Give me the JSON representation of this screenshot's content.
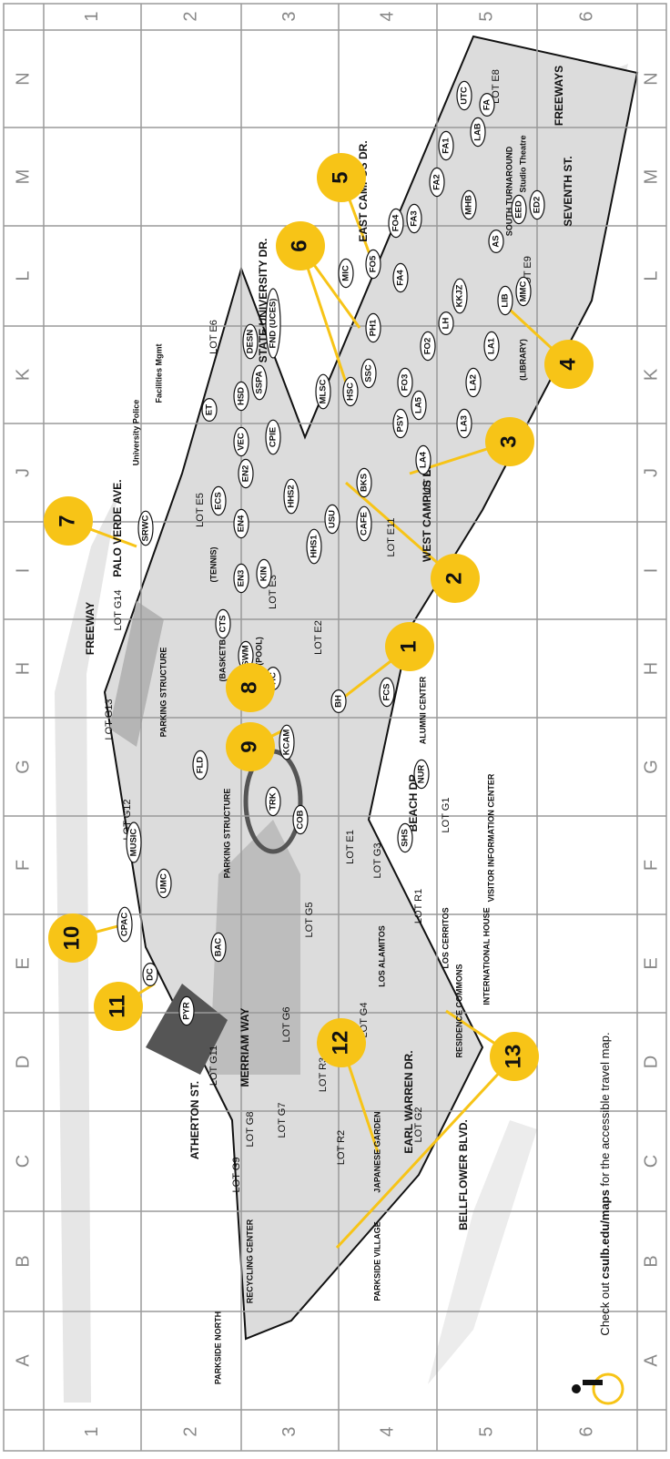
{
  "grid": {
    "columns": [
      "1",
      "2",
      "3",
      "4",
      "5",
      "6"
    ],
    "rows": [
      "N",
      "M",
      "L",
      "K",
      "J",
      "I",
      "H",
      "G",
      "F",
      "E",
      "D",
      "C",
      "B",
      "A"
    ]
  },
  "streets": [
    "PALO VERDE AVE.",
    "FREEWAY",
    "ATHERTON ST.",
    "MERRIAM WAY",
    "EARL WARREN DR.",
    "BELLFLOWER BLVD.",
    "WEST CAMPUS DR.",
    "BEACH DR.",
    "EAST CAMPUS DR.",
    "SEVENTH ST.",
    "FREEWAYS",
    "STATE UNIVERSITY DR."
  ],
  "places": [
    "PARKING STRUCTURE",
    "PARKING STRUCTURE",
    "RECYCLING CENTER",
    "PARKSIDE NORTH",
    "PARKSIDE VILLAGE",
    "JAPANESE GARDEN",
    "RESIDENCE COMMONS",
    "LOS ALAMITOS",
    "LOS CERRITOS",
    "INTERNATIONAL HOUSE",
    "VISITOR INFORMATION CENTER",
    "ALUMNI CENTER",
    "University Police",
    "Facilities Mgmt",
    "SOUTH TURNAROUND",
    "Studio Theatre",
    "(LIBRARY)",
    "(BASKETBALL)",
    "(TENNIS)",
    "(POOL)"
  ],
  "lots": [
    "LOT G13",
    "LOT G14",
    "LOT G12",
    "LOT G11",
    "LOT G9",
    "LOT G8",
    "LOT G7",
    "LOT G6",
    "LOT G5",
    "LOT G4",
    "LOT G3",
    "LOT G2",
    "LOT G1",
    "LOT E1",
    "LOT E2",
    "LOT E3",
    "LOT E5",
    "LOT E6",
    "LOT E8",
    "LOT E9",
    "LOT E10",
    "LOT E11",
    "LOT R1",
    "LOT R2",
    "LOT R3"
  ],
  "buildings": [
    "CPAC",
    "MUSIC",
    "UMC",
    "DC",
    "PYR",
    "BAC",
    "FLD",
    "TRK",
    "COB",
    "KCAM",
    "HC",
    "SWM",
    "CTS",
    "BH",
    "FCS",
    "NUR",
    "SHS",
    "SRWC",
    "ECS",
    "EN4",
    "EN3",
    "EN2",
    "KIN",
    "VEC",
    "CPIE",
    "HHS2",
    "HHS1",
    "USU",
    "CAFE",
    "BKS",
    "ET",
    "HSD",
    "SSPA",
    "DESN",
    "FND (UCES)",
    "MLSC",
    "HSC",
    "SSC",
    "PSY",
    "PH1",
    "LA5",
    "LA4",
    "LA3",
    "LA2",
    "LA1",
    "FO3",
    "FO2",
    "LH",
    "KKJZ",
    "LIB",
    "MMC",
    "AS",
    "MIC",
    "FO5",
    "FA4",
    "FO4",
    "FA3",
    "FA2",
    "FA1",
    "MHB",
    "EED",
    "ED2",
    "LAB",
    "FA",
    "UTC"
  ],
  "markers": [
    "1",
    "2",
    "3",
    "4",
    "5",
    "6",
    "7",
    "8",
    "9",
    "10",
    "11",
    "12",
    "13"
  ],
  "note": {
    "prefix": "Check out",
    "link": "csulb.edu/maps",
    "suffix": "for the accessible travel map."
  }
}
